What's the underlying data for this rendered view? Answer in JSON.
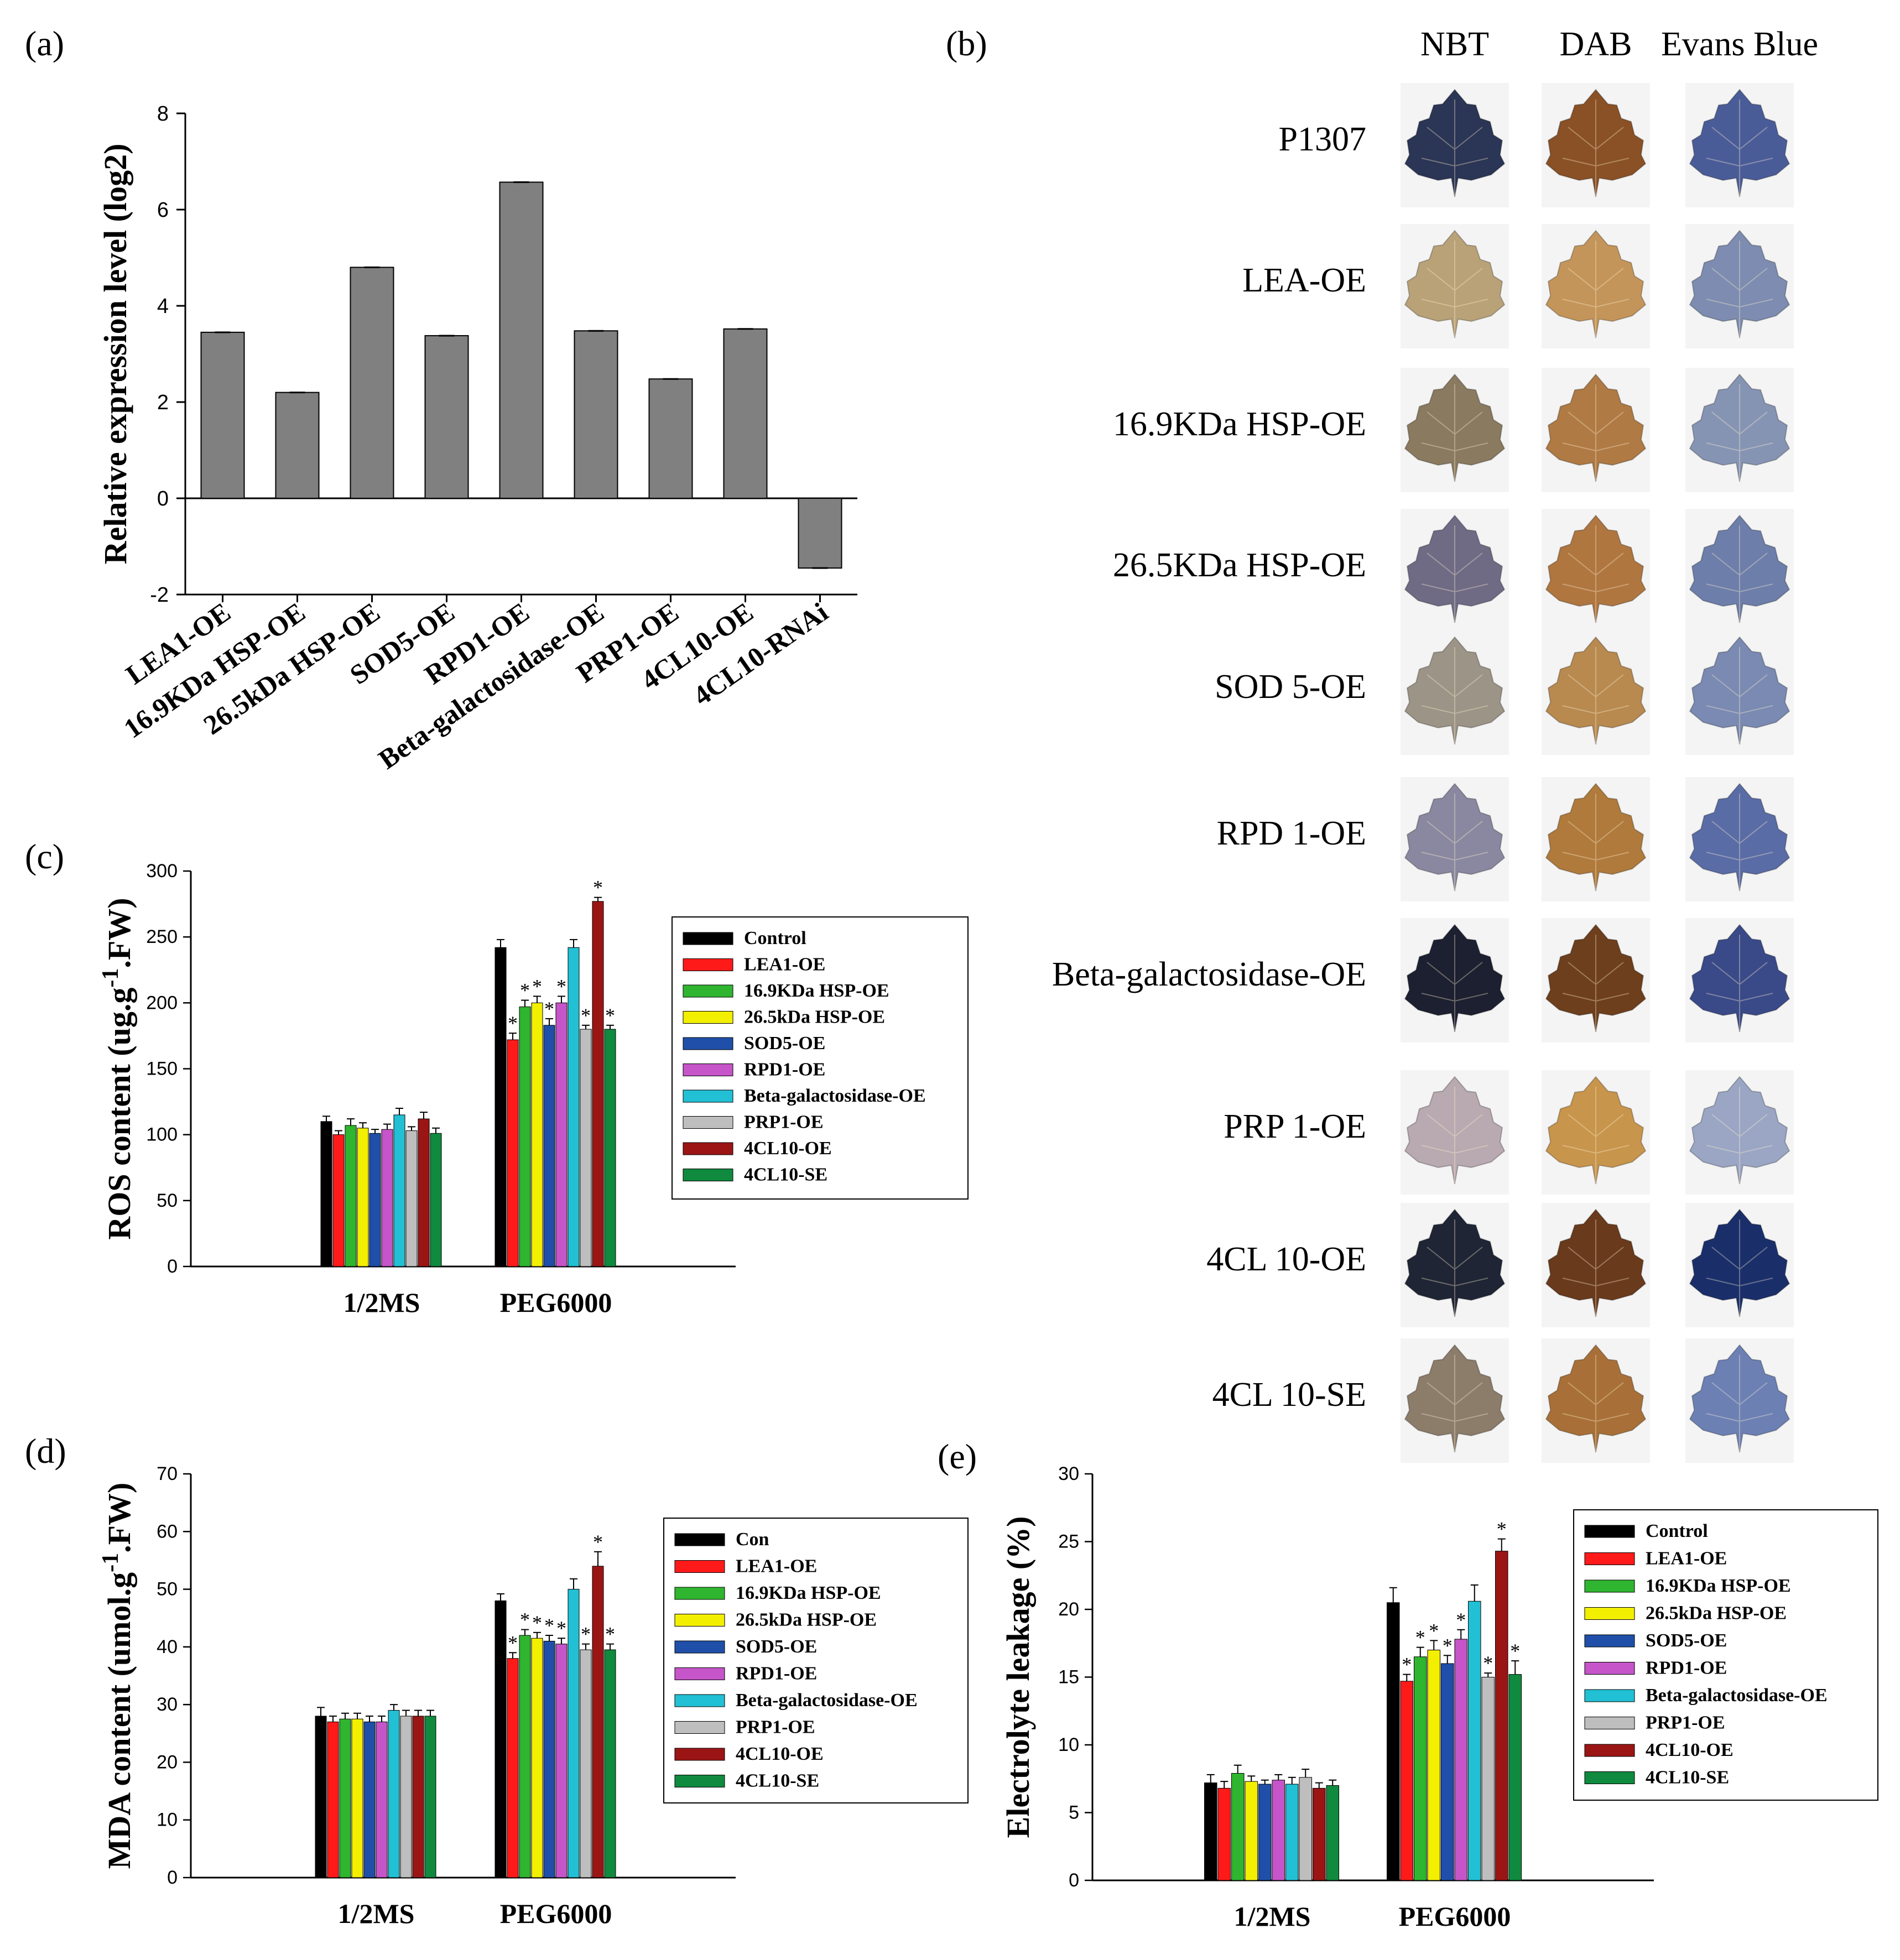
{
  "panels": {
    "a": {
      "label": "(a)"
    },
    "b": {
      "label": "(b)"
    },
    "c": {
      "label": "(c)"
    },
    "d": {
      "label": "(d)"
    },
    "e": {
      "label": "(e)"
    }
  },
  "staining": {
    "columns": [
      "NBT",
      "DAB",
      "Evans Blue"
    ],
    "rows": [
      "P1307",
      "LEA-OE",
      "16.9KDa HSP-OE",
      "26.5KDa HSP-OE",
      "SOD 5-OE",
      "RPD 1-OE",
      "Beta-galactosidase-OE",
      "PRP 1-OE",
      "4CL 10-OE",
      "4CL 10-SE"
    ],
    "leaf_colors": {
      "NBT": [
        "#2b3555",
        "#b9a278",
        "#8a7a60",
        "#6f6b85",
        "#9c9486",
        "#8a88a0",
        "#1c2030",
        "#b8aab0",
        "#1f2535",
        "#8c7c6a"
      ],
      "DAB": [
        "#8a5126",
        "#c4955a",
        "#b07a44",
        "#b07640",
        "#b88a50",
        "#b07a3c",
        "#6e3f1c",
        "#c8954c",
        "#6a3a1c",
        "#a87038"
      ],
      "Evans Blue": [
        "#4a5c98",
        "#7d8cb0",
        "#8694b4",
        "#6d7eaa",
        "#7a8ab2",
        "#5a6ca6",
        "#3a4a88",
        "#9aa6c4",
        "#1a2f6a",
        "#6c80b4"
      ]
    }
  },
  "chart_data": [
    {
      "id": "a",
      "type": "bar",
      "ylabel": "Relative expression level (log2)",
      "categories": [
        "LEA1-OE",
        "16.9KDa HSP-OE",
        "26.5kDa HSP-OE",
        "SOD5-OE",
        "RPD1-OE",
        "Beta-galactosidase-OE",
        "PRP1-OE",
        "4CL10-OE",
        "4CL10-RNAi"
      ],
      "values": [
        3.45,
        2.2,
        4.8,
        3.38,
        6.57,
        3.48,
        2.48,
        3.52,
        -1.45
      ],
      "ylim": [
        -2,
        8
      ],
      "yticks": [
        -2,
        0,
        2,
        4,
        6,
        8
      ],
      "bar_color": "#808080"
    },
    {
      "id": "c",
      "type": "bar",
      "ylabel_parts": [
        "ROS content (ug.g",
        "-1",
        ".FW)"
      ],
      "categories": [
        "1/2MS",
        "PEG6000"
      ],
      "ylim": [
        0,
        300
      ],
      "yticks": [
        0,
        50,
        100,
        150,
        200,
        250,
        300
      ],
      "legend": [
        "Control",
        "LEA1-OE",
        "16.9KDa HSP-OE",
        "26.5kDa HSP-OE",
        "SOD5-OE",
        "RPD1-OE",
        "Beta-galactosidase-OE",
        "PRP1-OE",
        "4CL10-OE",
        "4CL10-SE"
      ],
      "series": [
        {
          "name": "Control",
          "values": [
            110,
            242
          ],
          "errors": [
            4,
            6
          ],
          "star": [
            false,
            false
          ]
        },
        {
          "name": "LEA1-OE",
          "values": [
            100,
            172
          ],
          "errors": [
            3,
            5
          ],
          "star": [
            false,
            true
          ]
        },
        {
          "name": "16.9KDa HSP-OE",
          "values": [
            107,
            197
          ],
          "errors": [
            5,
            5
          ],
          "star": [
            false,
            true
          ]
        },
        {
          "name": "26.5kDa HSP-OE",
          "values": [
            105,
            200
          ],
          "errors": [
            4,
            5
          ],
          "star": [
            false,
            true
          ]
        },
        {
          "name": "SOD5-OE",
          "values": [
            101,
            183
          ],
          "errors": [
            3,
            5
          ],
          "star": [
            false,
            true
          ]
        },
        {
          "name": "RPD1-OE",
          "values": [
            104,
            200
          ],
          "errors": [
            4,
            5
          ],
          "star": [
            false,
            true
          ]
        },
        {
          "name": "Beta-galactosidase-OE",
          "values": [
            115,
            242
          ],
          "errors": [
            5,
            6
          ],
          "star": [
            false,
            false
          ]
        },
        {
          "name": "PRP1-OE",
          "values": [
            103,
            180
          ],
          "errors": [
            3,
            3
          ],
          "star": [
            false,
            true
          ]
        },
        {
          "name": "4CL10-OE",
          "values": [
            112,
            277
          ],
          "errors": [
            5,
            3
          ],
          "star": [
            false,
            true
          ]
        },
        {
          "name": "4CL10-SE",
          "values": [
            101,
            180
          ],
          "errors": [
            4,
            3
          ],
          "star": [
            false,
            true
          ]
        }
      ]
    },
    {
      "id": "d",
      "type": "bar",
      "ylabel_parts": [
        "MDA content (umol.g",
        "-1",
        ".FW)"
      ],
      "categories": [
        "1/2MS",
        "PEG6000"
      ],
      "ylim": [
        0,
        70
      ],
      "yticks": [
        0,
        10,
        20,
        30,
        40,
        50,
        60,
        70
      ],
      "legend": [
        "Con",
        "LEA1-OE",
        "16.9KDa HSP-OE",
        "26.5kDa HSP-OE",
        "SOD5-OE",
        "RPD1-OE",
        "Beta-galactosidase-OE",
        "PRP1-OE",
        "4CL10-OE",
        "4CL10-SE"
      ],
      "series": [
        {
          "name": "Con",
          "values": [
            28,
            48
          ],
          "errors": [
            1.5,
            1.2
          ],
          "star": [
            false,
            false
          ]
        },
        {
          "name": "LEA1-OE",
          "values": [
            27,
            38
          ],
          "errors": [
            1,
            1
          ],
          "star": [
            false,
            true
          ]
        },
        {
          "name": "16.9KDa HSP-OE",
          "values": [
            27.5,
            42
          ],
          "errors": [
            1,
            1
          ],
          "star": [
            false,
            true
          ]
        },
        {
          "name": "26.5kDa HSP-OE",
          "values": [
            27.5,
            41.5
          ],
          "errors": [
            1,
            1
          ],
          "star": [
            false,
            true
          ]
        },
        {
          "name": "SOD5-OE",
          "values": [
            27,
            41
          ],
          "errors": [
            1,
            1
          ],
          "star": [
            false,
            true
          ]
        },
        {
          "name": "RPD1-OE",
          "values": [
            27,
            40.5
          ],
          "errors": [
            1,
            1
          ],
          "star": [
            false,
            true
          ]
        },
        {
          "name": "Beta-galactosidase-OE",
          "values": [
            29,
            50
          ],
          "errors": [
            1,
            1.8
          ],
          "star": [
            false,
            false
          ]
        },
        {
          "name": "PRP1-OE",
          "values": [
            28,
            39.5
          ],
          "errors": [
            1,
            1
          ],
          "star": [
            false,
            true
          ]
        },
        {
          "name": "4CL10-OE",
          "values": [
            28,
            54
          ],
          "errors": [
            1,
            2.5
          ],
          "star": [
            false,
            true
          ]
        },
        {
          "name": "4CL10-SE",
          "values": [
            28,
            39.5
          ],
          "errors": [
            1,
            1
          ],
          "star": [
            false,
            true
          ]
        }
      ]
    },
    {
      "id": "e",
      "type": "bar",
      "ylabel": "Electrolyte leakage (%)",
      "categories": [
        "1/2MS",
        "PEG6000"
      ],
      "ylim": [
        0,
        30
      ],
      "yticks": [
        0,
        5,
        10,
        15,
        20,
        25,
        30
      ],
      "legend": [
        "Control",
        "LEA1-OE",
        "16.9KDa HSP-OE",
        "26.5kDa HSP-OE",
        "SOD5-OE",
        "RPD1-OE",
        "Beta-galactosidase-OE",
        "PRP1-OE",
        "4CL10-OE",
        "4CL10-SE"
      ],
      "series": [
        {
          "name": "Control",
          "values": [
            7.2,
            20.5
          ],
          "errors": [
            0.6,
            1.1
          ],
          "star": [
            false,
            false
          ]
        },
        {
          "name": "LEA1-OE",
          "values": [
            6.8,
            14.7
          ],
          "errors": [
            0.5,
            0.5
          ],
          "star": [
            false,
            true
          ]
        },
        {
          "name": "16.9KDa HSP-OE",
          "values": [
            7.9,
            16.5
          ],
          "errors": [
            0.6,
            0.7
          ],
          "star": [
            false,
            true
          ]
        },
        {
          "name": "26.5kDa HSP-OE",
          "values": [
            7.3,
            17
          ],
          "errors": [
            0.4,
            0.7
          ],
          "star": [
            false,
            true
          ]
        },
        {
          "name": "SOD5-OE",
          "values": [
            7.1,
            16
          ],
          "errors": [
            0.3,
            0.6
          ],
          "star": [
            false,
            true
          ]
        },
        {
          "name": "RPD1-OE",
          "values": [
            7.4,
            17.8
          ],
          "errors": [
            0.4,
            0.7
          ],
          "star": [
            false,
            true
          ]
        },
        {
          "name": "Beta-galactosidase-OE",
          "values": [
            7.1,
            20.6
          ],
          "errors": [
            0.5,
            1.2
          ],
          "star": [
            false,
            false
          ]
        },
        {
          "name": "PRP1-OE",
          "values": [
            7.6,
            15
          ],
          "errors": [
            0.6,
            0.3
          ],
          "star": [
            false,
            true
          ]
        },
        {
          "name": "4CL10-OE",
          "values": [
            6.8,
            24.3
          ],
          "errors": [
            0.4,
            0.9
          ],
          "star": [
            false,
            true
          ]
        },
        {
          "name": "4CL10-SE",
          "values": [
            7,
            15.2
          ],
          "errors": [
            0.4,
            1
          ],
          "star": [
            false,
            true
          ]
        }
      ]
    }
  ],
  "series_colors": [
    "#000000",
    "#ff1a1a",
    "#2fb52f",
    "#f3ef00",
    "#1f4fa8",
    "#c555c8",
    "#22c0d4",
    "#bebebe",
    "#9b1515",
    "#0f8a3e"
  ],
  "significance_marker": "*"
}
